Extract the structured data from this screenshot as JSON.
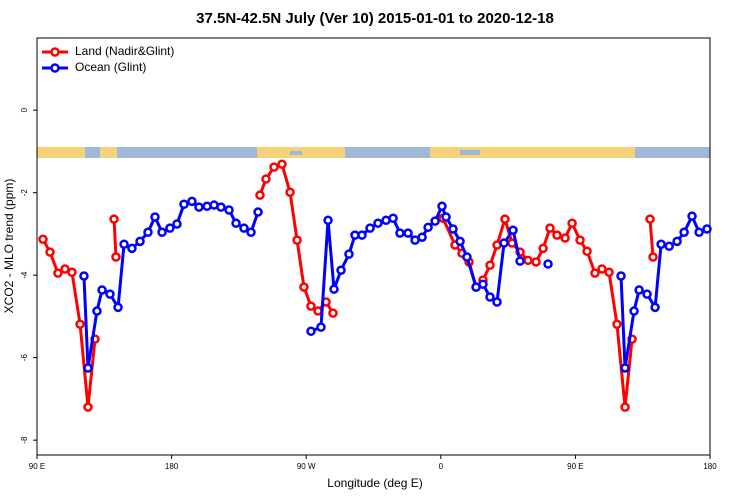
{
  "chart_data": {
    "type": "line",
    "title": "37.5N-42.5N July (Ver 10)   2015-01-01 to 2020-12-18",
    "x_label": "Longitude (deg E)",
    "y_label": "XCO2 - MLO trend (ppm)",
    "xlim": [
      90,
      540
    ],
    "ylim": [
      -8.36,
      1.75
    ],
    "xticks": [
      {
        "value": 90,
        "label": "90 E"
      },
      180,
      {
        "value": 270,
        "label": "90 W"
      },
      {
        "value": 360,
        "label": "0"
      },
      {
        "value": 450,
        "label": "90 E"
      },
      {
        "value": 540,
        "label": "180"
      }
    ],
    "yticks": [
      0,
      -2,
      -4,
      -6,
      -8
    ],
    "legend_position": "topleft",
    "grid": false,
    "series": [
      {
        "name": "Land (Nadir&Glint)",
        "color": "#ff0000",
        "x": [
          94.0,
          98.7,
          104.0,
          108.7,
          113.4,
          118.8,
          124.1,
          128.8,
          135.0,
          141.5,
          142.8,
          190.0,
          239.1,
          243.1,
          248.5,
          253.8,
          259.2,
          263.9,
          268.5,
          273.2,
          277.9,
          283.3,
          287.9,
          325.0,
          361.5,
          369.5,
          374.2,
          378.9,
          383.6,
          388.2,
          392.9,
          397.6,
          402.9,
          407.6,
          413.0,
          418.3,
          423.7,
          428.4,
          433.0,
          437.7,
          443.1,
          447.8,
          453.1,
          457.8,
          463.1,
          467.8,
          472.5,
          477.8,
          483.2,
          487.9,
          494.0,
          499.9,
          501.9
        ],
        "values": [
          -3.13,
          -3.44,
          -3.95,
          -3.85,
          -3.93,
          -5.19,
          -7.2,
          -5.55,
          null,
          -2.64,
          -3.56,
          null,
          -2.06,
          -1.67,
          -1.38,
          -1.31,
          -1.99,
          -3.15,
          -4.29,
          -4.75,
          -4.87,
          -4.65,
          -4.92,
          null,
          -2.62,
          -3.27,
          -3.47,
          -3.68,
          -4.29,
          -4.12,
          -3.76,
          -3.27,
          -2.64,
          -3.22,
          -3.44,
          -3.64,
          -3.68,
          -3.35,
          -2.86,
          -3.03,
          -3.1,
          -2.74,
          -3.15,
          -3.42,
          -3.95,
          -3.85,
          -3.93,
          -5.19,
          -7.2,
          -5.55,
          null,
          -2.64,
          -3.56
        ]
      },
      {
        "name": "Ocean (Glint)",
        "color": "#0000ff",
        "x": [
          121.4,
          124.1,
          130.1,
          133.5,
          138.8,
          144.2,
          148.2,
          153.5,
          158.9,
          164.2,
          168.9,
          173.6,
          178.9,
          183.6,
          188.3,
          193.6,
          198.3,
          203.7,
          208.4,
          213.0,
          218.4,
          223.1,
          228.4,
          233.1,
          237.8,
          255.0,
          273.2,
          279.9,
          284.6,
          288.6,
          293.3,
          298.6,
          302.6,
          307.3,
          312.7,
          318.0,
          323.4,
          328.1,
          332.7,
          338.1,
          342.8,
          347.5,
          351.5,
          356.2,
          360.8,
          363.5,
          368.2,
          372.9,
          377.5,
          383.6,
          388.2,
          392.9,
          397.6,
          402.3,
          408.3,
          413.0,
          422.0,
          431.7,
          456.0,
          480.5,
          483.2,
          489.2,
          492.6,
          497.9,
          503.3,
          507.3,
          512.7,
          518.0,
          522.7,
          528.0,
          532.7,
          538.0
        ],
        "values": [
          -4.02,
          -6.25,
          -4.87,
          -4.36,
          -4.46,
          -4.78,
          -3.25,
          -3.35,
          -3.18,
          -2.96,
          -2.59,
          -2.96,
          -2.86,
          -2.76,
          -2.28,
          -2.21,
          -2.35,
          -2.33,
          -2.3,
          -2.35,
          -2.42,
          -2.74,
          -2.86,
          -2.96,
          -2.47,
          null,
          -5.36,
          -5.26,
          -2.67,
          -4.34,
          -3.88,
          -3.49,
          -3.03,
          -3.03,
          -2.86,
          -2.74,
          -2.67,
          -2.62,
          -2.98,
          -2.98,
          -3.15,
          -3.08,
          -2.84,
          -2.69,
          -2.33,
          -2.59,
          -2.88,
          -3.18,
          -3.56,
          -4.29,
          -4.22,
          -4.53,
          -4.65,
          -3.22,
          -2.91,
          -3.66,
          null,
          -3.73,
          null,
          -4.02,
          -6.25,
          -4.87,
          -4.36,
          -4.46,
          -4.78,
          -3.25,
          -3.3,
          -3.18,
          -2.96,
          -2.57,
          -2.96,
          -2.88
        ]
      }
    ]
  }
}
